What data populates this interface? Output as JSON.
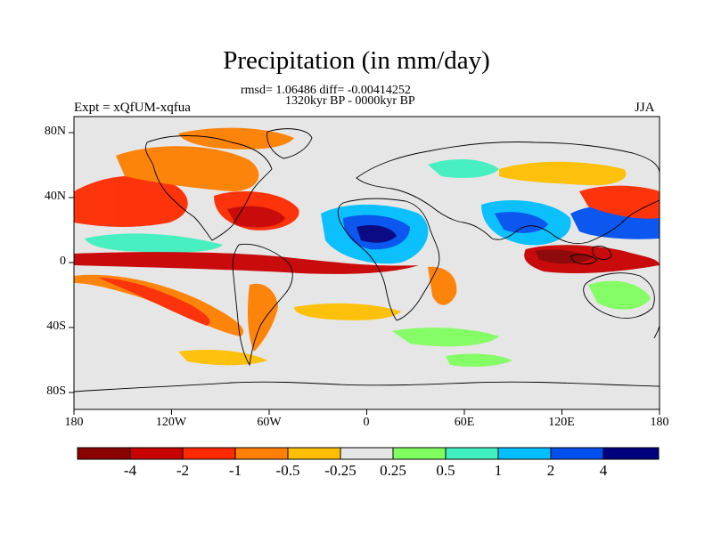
{
  "figure": {
    "title": "Precipitation (in mm/day)",
    "stats_line": "rmsd= 1.06486 diff= -0.00414252",
    "period_line": "1320kyr BP - 0000kyr BP",
    "left_label": "Expt = xQfUM-xqfua",
    "right_label": "JJA"
  },
  "axes": {
    "x_ticks": [
      "180",
      "120W",
      "60W",
      "0",
      "60E",
      "120E",
      "180"
    ],
    "y_ticks": [
      "80N",
      "40N",
      "0",
      "40S",
      "80S"
    ]
  },
  "colorbar": {
    "levels": [
      "-4",
      "-2",
      "-1",
      "-0.5",
      "-0.25",
      "0.25",
      "0.5",
      "1",
      "2",
      "4"
    ],
    "colors": [
      "#8b0000",
      "#c80000",
      "#ff2a00",
      "#ff7f00",
      "#ffbf00",
      "#e6e6e6",
      "#80ff60",
      "#40f0c0",
      "#00bfff",
      "#0050f0",
      "#00007f"
    ]
  },
  "map": {
    "land_outline_color": "#000000",
    "background_color": "#e6e6e6"
  }
}
